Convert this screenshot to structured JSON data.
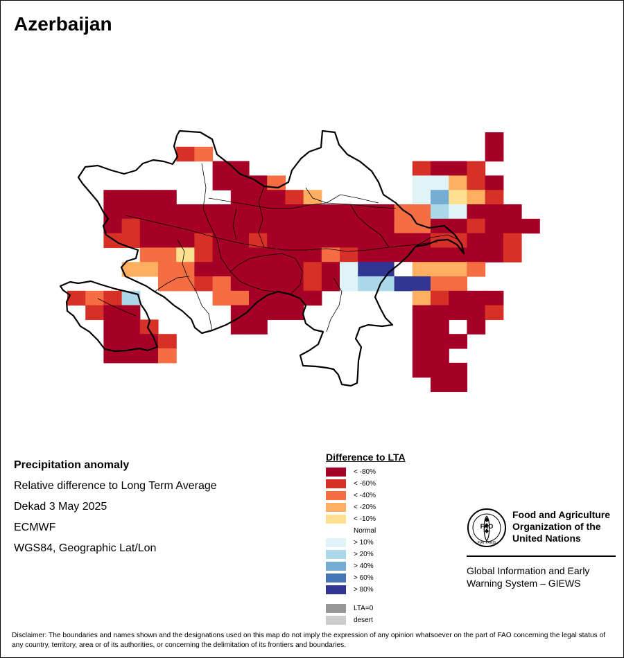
{
  "title": "Azerbaijan",
  "info": {
    "lines": [
      "Precipitation anomaly",
      "Relative difference to Long Term Average",
      "Dekad 3 May 2025",
      "ECMWF",
      "WGS84, Geographic Lat/Lon"
    ]
  },
  "legend": {
    "title": "Difference to LTA",
    "classes": [
      {
        "key": "A",
        "label": "< -80%",
        "color": "#a50026"
      },
      {
        "key": "B",
        "label": "< -60%",
        "color": "#d73027"
      },
      {
        "key": "C",
        "label": "< -40%",
        "color": "#f46d43"
      },
      {
        "key": "D",
        "label": "< -20%",
        "color": "#fdae61"
      },
      {
        "key": "E",
        "label": "< -10%",
        "color": "#fee090"
      },
      {
        "key": "N",
        "label": "Normal",
        "color": "#ffffff"
      },
      {
        "key": "F",
        "label": "> 10%",
        "color": "#e0f3f8"
      },
      {
        "key": "G",
        "label": "> 20%",
        "color": "#abd9e9"
      },
      {
        "key": "H",
        "label": "> 40%",
        "color": "#74add1"
      },
      {
        "key": "I",
        "label": "> 60%",
        "color": "#4575b4"
      },
      {
        "key": "J",
        "label": "> 80%",
        "color": "#313695"
      }
    ],
    "extra": [
      {
        "key": "Z",
        "label": "LTA=0",
        "color": "#969696"
      },
      {
        "key": "S",
        "label": "desert",
        "color": "#cccccc"
      }
    ]
  },
  "map_grid": {
    "col_labels": [
      "a",
      "b",
      "c",
      "d",
      "e",
      "f",
      "g",
      "h",
      "i",
      "j",
      "k",
      "l",
      "m",
      "n",
      "o",
      "p",
      "q",
      "r",
      "s",
      "t",
      "u",
      "v",
      "w",
      "x",
      "y",
      "z"
    ],
    "rows": [
      ".......................A..",
      "......BC...............A..",
      "........AA.........BAAB...",
      "........AAAC.......FFDBA..",
      "..AAAA...AAABD.....FHEDB..",
      "..AAAAAAAAAAAAAAAACCGFAAA.",
      "..ABAAAAAAAAAAAAAACCAABAAA",
      "..BBAAABAABAAAAAAAAABBAAB.",
      "....CCEBAAAAAACBAAAAAAAAB.",
      "...DDCCAAAAAABAFJJNDDDC...",
      ".....CCBCAAAABAFGGJJCC....",
      "BCBG....CCAAAA.....DBAAA..",
      ".BAA.....AAAA......AAAAB..",
      "..AAB....AA........AA.A...",
      "..AAAB.............AAA....",
      "..AAAC.............AA.....",
      "...................AAA....",
      "....................AA...."
    ]
  },
  "org": {
    "name": "Food and Agriculture Organization of the United Nations",
    "name_lines": [
      "Food and Agriculture",
      "Organization of the",
      "United Nations"
    ],
    "logo_text": "FAO",
    "motto": "FIAT PANIS",
    "system_lines": [
      "Global Information and Early",
      "Warning System – GIEWS"
    ]
  },
  "disclaimer": "Disclaimer: The boundaries and names shown and the designations used on this map do not imply the expression of any opinion whatsoever on the part of FAO concerning the legal status of any country, territory, area or of its authorities, or concerning the delimitation of its frontiers and boundaries."
}
